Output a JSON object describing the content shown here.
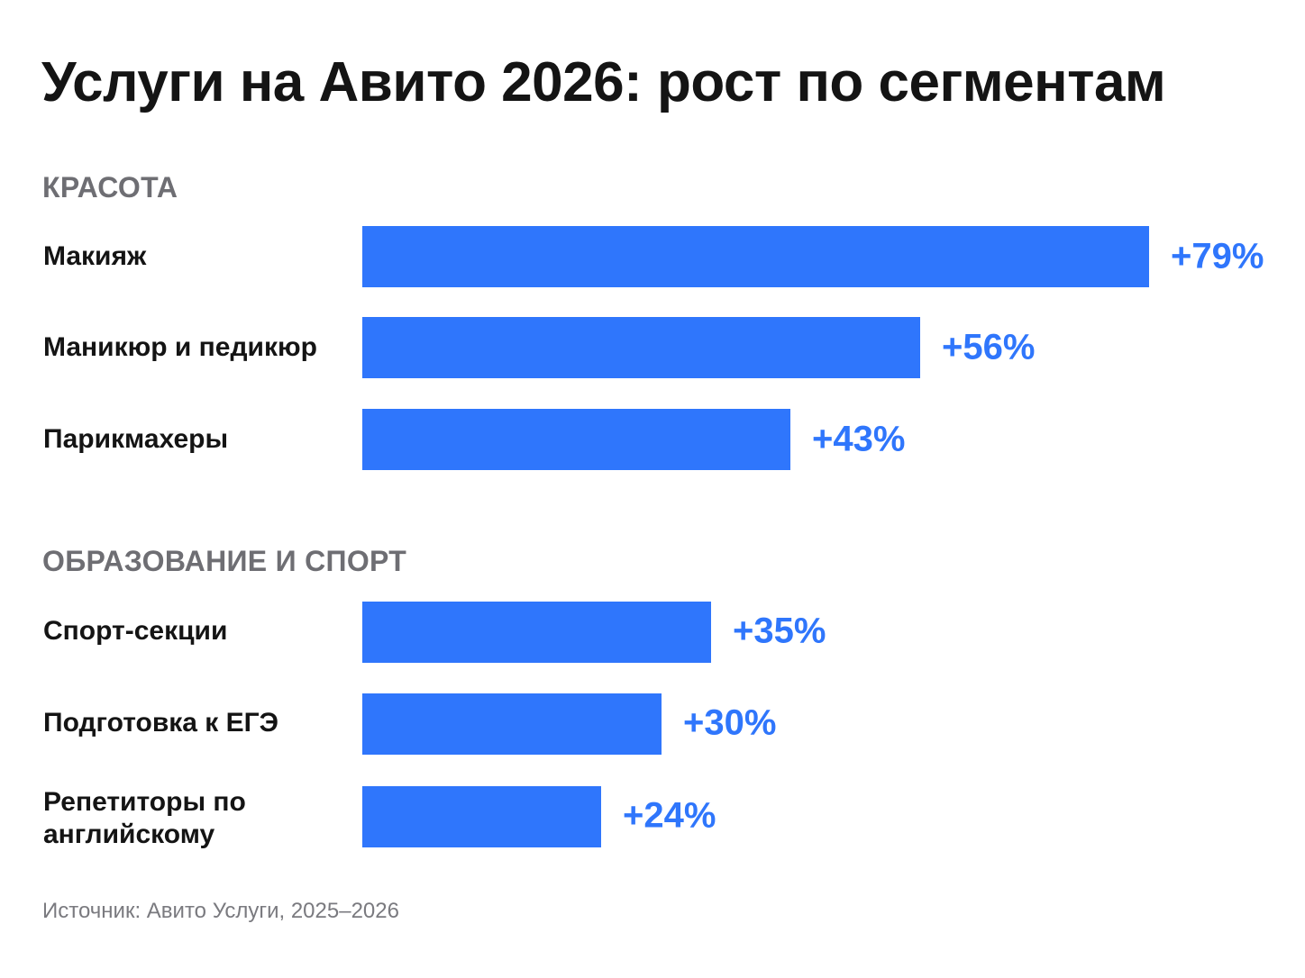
{
  "chart_data": {
    "type": "bar",
    "orientation": "horizontal",
    "title": "Услуги на Авито 2026: рост по сегментам",
    "grid": false,
    "legend": "none",
    "xlim": [
      0,
      79
    ],
    "groups": [
      {
        "name": "КРАСОТА",
        "items": [
          {
            "label": "Макияж",
            "value": 79,
            "value_label": "+79%"
          },
          {
            "label": "Маникюр и педикюр",
            "value": 56,
            "value_label": "+56%"
          },
          {
            "label": "Парикмахеры",
            "value": 43,
            "value_label": "+43%"
          }
        ]
      },
      {
        "name": "ОБРАЗОВАНИЕ И СПОРТ",
        "items": [
          {
            "label": "Спорт-секции",
            "value": 35,
            "value_label": "+35%"
          },
          {
            "label": "Подготовка к ЕГЭ",
            "value": 30,
            "value_label": "+30%"
          },
          {
            "label": "Репетиторы по английскому",
            "value": 24,
            "value_label": "+24%"
          }
        ]
      }
    ],
    "bar_color": "#2f76fc",
    "source": "Источник: Авито Услуги, 2025–2026"
  }
}
